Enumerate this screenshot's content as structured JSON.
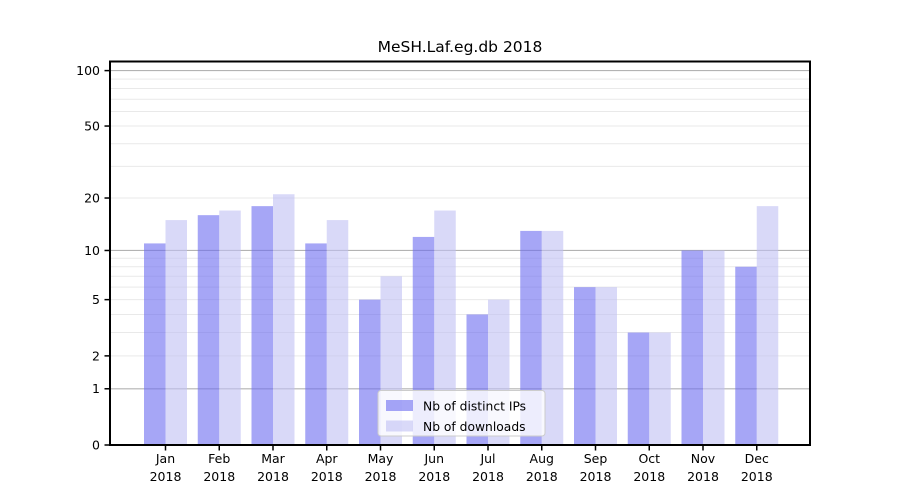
{
  "chart_data": {
    "type": "bar",
    "title": "MeSH.Laf.eg.db 2018",
    "scale": "log1p",
    "categories": [
      "Jan",
      "Feb",
      "Mar",
      "Apr",
      "May",
      "Jun",
      "Jul",
      "Aug",
      "Sep",
      "Oct",
      "Nov",
      "Dec"
    ],
    "year_label": "2018",
    "series": [
      {
        "name": "Nb of distinct IPs",
        "color": "rgba(107,107,240,0.6)",
        "solid_color": "#a6a6f6",
        "values": [
          11,
          16,
          18,
          11,
          5,
          12,
          4,
          13,
          6,
          3,
          10,
          8
        ]
      },
      {
        "name": "Nb of downloads",
        "color": "rgba(192,192,243,0.6)",
        "solid_color": "#d9d9f7",
        "values": [
          15,
          17,
          21,
          15,
          7,
          17,
          5,
          13,
          6,
          3,
          10,
          18
        ]
      }
    ],
    "y_ticks": [
      100,
      50,
      20,
      10,
      5,
      2,
      1,
      0
    ],
    "major_gridlines": [
      1,
      10,
      100
    ],
    "minor_gridlines": [
      2,
      3,
      4,
      5,
      6,
      7,
      8,
      9,
      20,
      30,
      40,
      50,
      60,
      70,
      80,
      90
    ],
    "ylim": [
      0,
      112
    ],
    "grid": true,
    "legend_position": "lower-center",
    "colors": {
      "major_grid": "#b3b3b3",
      "minor_grid": "#e9e9e9",
      "spine": "#000000",
      "legend_border": "#cccccc",
      "legend_bg": "#ffffff",
      "background": "#ffffff"
    }
  }
}
